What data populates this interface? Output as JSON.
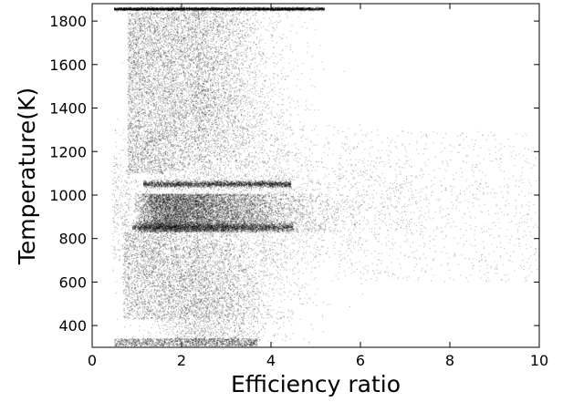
{
  "chart_data": {
    "type": "scatter",
    "title": "",
    "xlabel": "Efficiency ratio",
    "ylabel": "Temperature(K)",
    "xlim": [
      0,
      10
    ],
    "ylim": [
      300,
      1880
    ],
    "x_ticks": [
      0,
      2,
      4,
      6,
      8,
      10
    ],
    "y_ticks": [
      400,
      600,
      800,
      1000,
      1200,
      1400,
      1600,
      1800
    ],
    "grid": false,
    "legend": "none",
    "marker_color": "#000000",
    "point_clusters": [
      {
        "label": "top band",
        "x_range": [
          0.5,
          4.7
        ],
        "y": 1855,
        "y_spread": 8,
        "density": "very high"
      },
      {
        "label": "main body",
        "x_range": [
          0.5,
          10
        ],
        "y_range": [
          300,
          1850
        ],
        "density": "high near x=1-4"
      },
      {
        "label": "dense band 1050",
        "x_range": [
          1.1,
          4.5
        ],
        "y": 1050,
        "density": "very high"
      },
      {
        "label": "dense core",
        "x_range": [
          0.8,
          4.5
        ],
        "y_range": [
          830,
          1000
        ],
        "density": "very high"
      },
      {
        "label": "dense band 850",
        "x_range": [
          0.9,
          4.5
        ],
        "y": 850,
        "density": "very high"
      },
      {
        "label": "bottom band",
        "x_range": [
          0.5,
          3.5
        ],
        "y_range": [
          300,
          340
        ],
        "density": "high"
      }
    ]
  }
}
